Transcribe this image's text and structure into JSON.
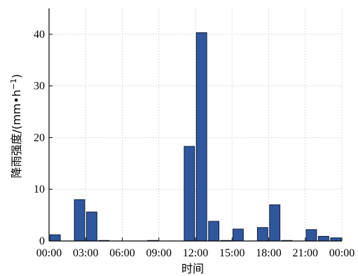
{
  "chart_data": {
    "type": "bar",
    "xlabel": "时间",
    "ylabel": "降雨强度/(mm•h",
    "ylabel_sup": "−1",
    "ylabel_close": ")",
    "ylim": [
      0,
      45
    ],
    "yticks": [
      0,
      10,
      20,
      30,
      40
    ],
    "xlim": [
      0,
      24
    ],
    "xticks": [
      {
        "value": 0,
        "label": "00:00"
      },
      {
        "value": 3,
        "label": "03:00"
      },
      {
        "value": 6,
        "label": "06:00"
      },
      {
        "value": 9,
        "label": "09:00"
      },
      {
        "value": 12,
        "label": "12:00"
      },
      {
        "value": 15,
        "label": "15:00"
      },
      {
        "value": 18,
        "label": "18:00"
      },
      {
        "value": 21,
        "label": "21:00"
      },
      {
        "value": 24,
        "label": "00:00"
      }
    ],
    "x": [
      "00:00",
      "01:00",
      "02:00",
      "03:00",
      "04:00",
      "05:00",
      "06:00",
      "07:00",
      "08:00",
      "09:00",
      "10:00",
      "11:00",
      "12:00",
      "13:00",
      "14:00",
      "15:00",
      "16:00",
      "17:00",
      "18:00",
      "19:00",
      "20:00",
      "21:00",
      "22:00",
      "23:00"
    ],
    "values": [
      1.2,
      0,
      8.0,
      5.6,
      0.1,
      0,
      0,
      0,
      0.1,
      0,
      0,
      18.3,
      40.3,
      3.8,
      0.1,
      2.3,
      0,
      2.6,
      7.0,
      0.1,
      0,
      2.2,
      0.9,
      0.6
    ],
    "grid": true,
    "bar_color": "#2f579d",
    "bar_edge": "#0d1b3a",
    "grid_color": "#d9d9d9"
  }
}
